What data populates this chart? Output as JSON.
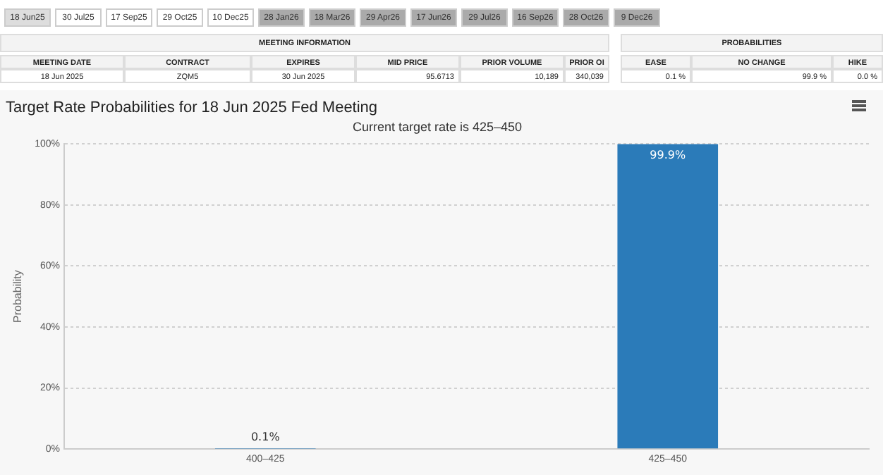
{
  "chart_data": [
    {
      "type": "other",
      "annotations": [
        "18 Jun25",
        "30 Jul25",
        "17 Sep25",
        "29 Oct25",
        "10 Dec25",
        "28 Jan26",
        "18 Mar26",
        "29 Apr26",
        "17 Jun26",
        "29 Jul26",
        "16 Sep26",
        "28 Oct26",
        "9 Dec26",
        "MEETING INFORMATION",
        "MEETING DATE",
        "CONTRACT",
        "EXPIRES",
        "MID PRICE",
        "PRIOR VOLUME",
        "PRIOR OI",
        "18 Jun 2025",
        "ZQM5",
        "30 Jun 2025",
        "95.6713",
        "10,189",
        "340,039",
        "PROBABILITIES",
        "EASE",
        "NO CHANGE",
        "HIKE",
        "0.1 %",
        "99.9 %",
        "0.0 %"
      ]
    },
    {
      "type": "bar",
      "title": "Target Rate Probabilities for 18 Jun 2025 Fed Meeting",
      "subtitle": "Current target rate is 425–450",
      "ylabel": "Probability",
      "categories": [
        "400–425",
        "425–450"
      ],
      "values": [
        0.1,
        99.9
      ],
      "color": "#2b7bb9",
      "value_labels": [
        "0.1%",
        "99.9%"
      ],
      "ylim": [
        0,
        100
      ],
      "yticks": [
        {
          "value": 0,
          "label": "0%"
        },
        {
          "value": 20,
          "label": "20%"
        },
        {
          "value": 40,
          "label": "40%"
        },
        {
          "value": 60,
          "label": "60%"
        },
        {
          "value": 80,
          "label": "80%"
        },
        {
          "value": 100,
          "label": "100%"
        }
      ],
      "grid": "y",
      "legend": false
    }
  ]
}
